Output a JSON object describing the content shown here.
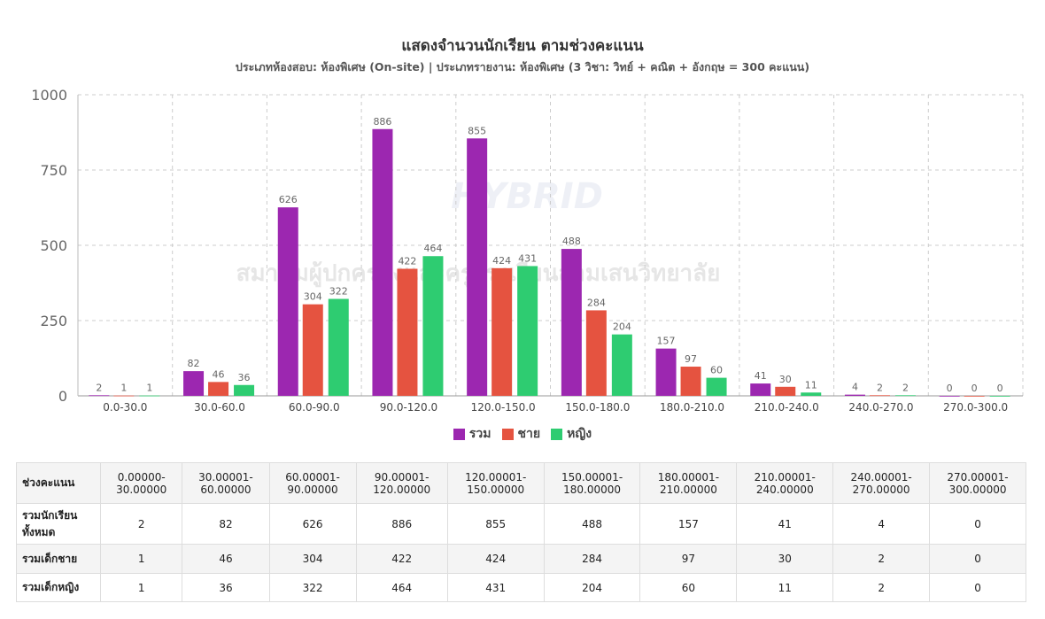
{
  "chart_data": {
    "type": "bar",
    "title": "แสดงจำนวนนักเรียน ตามช่วงคะแนน",
    "subtitle": "ประเภทห้องสอบ: ห้องพิเศษ (On-site) | ประเภทรายงาน: ห้องพิเศษ (3 วิชา: วิทย์ + คณิต + อังกฤษ = 300 คะแนน)",
    "categories": [
      "0.0-30.0",
      "30.0-60.0",
      "60.0-90.0",
      "90.0-120.0",
      "120.0-150.0",
      "150.0-180.0",
      "180.0-210.0",
      "210.0-240.0",
      "240.0-270.0",
      "270.0-300.0"
    ],
    "series": [
      {
        "name": "รวม",
        "color": "#9c27b0",
        "values": [
          2,
          82,
          626,
          886,
          855,
          488,
          157,
          41,
          4,
          0
        ]
      },
      {
        "name": "ชาย",
        "color": "#e55340",
        "values": [
          1,
          46,
          304,
          422,
          424,
          284,
          97,
          30,
          2,
          0
        ]
      },
      {
        "name": "หญิง",
        "color": "#2ecc71",
        "values": [
          1,
          36,
          322,
          464,
          431,
          204,
          60,
          11,
          2,
          0
        ]
      }
    ],
    "ylim": [
      0,
      1000
    ],
    "yticks": [
      "0",
      "250",
      "500",
      "750",
      "1000"
    ],
    "grid": true,
    "legend": "bottom",
    "watermark": "สมาคมผู้ปกครองและครูโรงเรียนสามเสนวิทยาลัย",
    "watermark_logo": "SAMSEN PRE-TEST 2026 HYBRID"
  },
  "table": {
    "header_label": "ช่วงคะแนน",
    "ranges": [
      "0.00000-30.00000",
      "30.00001-60.00000",
      "60.00001-90.00000",
      "90.00001-120.00000",
      "120.00001-150.00000",
      "150.00001-180.00000",
      "180.00001-210.00000",
      "210.00001-240.00000",
      "240.00001-270.00000",
      "270.00001-300.00000"
    ],
    "rows": [
      {
        "label": "รวมนักเรียนทั้งหมด",
        "values": [
          "2",
          "82",
          "626",
          "886",
          "855",
          "488",
          "157",
          "41",
          "4",
          "0"
        ]
      },
      {
        "label": "รวมเด็กชาย",
        "values": [
          "1",
          "46",
          "304",
          "422",
          "424",
          "284",
          "97",
          "30",
          "2",
          "0"
        ]
      },
      {
        "label": "รวมเด็กหญิง",
        "values": [
          "1",
          "36",
          "322",
          "464",
          "431",
          "204",
          "60",
          "11",
          "2",
          "0"
        ]
      }
    ]
  }
}
